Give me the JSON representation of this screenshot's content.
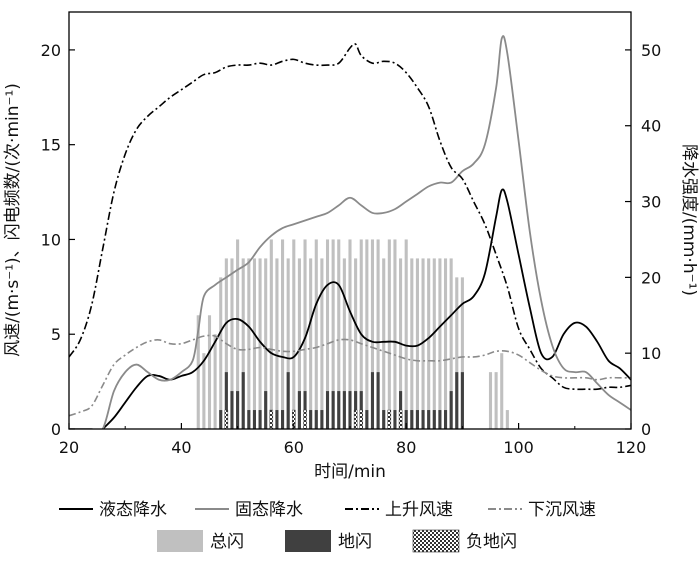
{
  "chart_data": {
    "type": "line",
    "xlabel": "时间/min",
    "ylabel_left": "风速/(m·s⁻¹)、闪电频数/(次·min⁻¹)",
    "ylabel_right": "降水强度/(mm·h⁻¹)",
    "xlim": [
      20,
      120
    ],
    "ylim_left": [
      0,
      22
    ],
    "ylim_right": [
      0,
      55
    ],
    "xticks": [
      20,
      40,
      60,
      80,
      100,
      120
    ],
    "yticks_left": [
      0,
      5,
      10,
      15,
      20
    ],
    "yticks_right": [
      0,
      10,
      20,
      30,
      40,
      50
    ],
    "grid": false,
    "legend_position": "bottom",
    "series": [
      {
        "name": "液态降水",
        "axis": "right",
        "color": "#000000",
        "style": "solid",
        "x": [
          26,
          28,
          30,
          32,
          34,
          36,
          38,
          40,
          42,
          44,
          46,
          48,
          50,
          52,
          54,
          56,
          58,
          60,
          62,
          64,
          66,
          68,
          70,
          72,
          74,
          76,
          78,
          80,
          82,
          84,
          86,
          88,
          90,
          92,
          94,
          96,
          97,
          98,
          100,
          102,
          104,
          106,
          108,
          110,
          112,
          114,
          116,
          118,
          120
        ],
        "values": [
          0,
          1.5,
          3.5,
          5.5,
          7,
          7,
          6.5,
          7,
          7.5,
          9,
          11.5,
          14,
          14.5,
          13.5,
          11.5,
          10,
          9.5,
          9.5,
          12,
          16.5,
          19,
          19,
          15.5,
          12.5,
          11.5,
          11.5,
          11.5,
          11,
          11,
          12,
          13.5,
          15,
          16.5,
          17.5,
          20.5,
          28,
          31.5,
          30,
          23,
          16,
          10,
          9.5,
          12.5,
          14,
          13.5,
          11.5,
          9,
          8,
          6.5
        ]
      },
      {
        "name": "固态降水",
        "axis": "right",
        "color": "#8a8a8a",
        "style": "solid",
        "x": [
          20,
          22,
          24,
          26,
          28,
          30,
          32,
          34,
          36,
          38,
          40,
          42,
          43,
          44,
          46,
          48,
          50,
          52,
          54,
          56,
          58,
          60,
          62,
          64,
          66,
          68,
          70,
          72,
          74,
          76,
          78,
          80,
          82,
          84,
          86,
          88,
          90,
          92,
          94,
          96,
          97,
          98,
          100,
          102,
          104,
          106,
          108,
          110,
          112,
          114,
          116,
          118,
          120
        ],
        "values": [
          0,
          0,
          0,
          0,
          5,
          7.5,
          8.5,
          7.5,
          6.5,
          6.5,
          7.5,
          9,
          13,
          17.5,
          19,
          20,
          21,
          22,
          24,
          25.5,
          26.5,
          27,
          27.5,
          28,
          28.5,
          29.5,
          30.5,
          29.5,
          28.5,
          28.5,
          29,
          30,
          31,
          32,
          32.5,
          32.5,
          34,
          35,
          37.5,
          45,
          51.5,
          49.5,
          38,
          26,
          17,
          11,
          8,
          7.5,
          7.5,
          6,
          4.5,
          3.5,
          2.5
        ]
      },
      {
        "name": "上升风速",
        "axis": "left",
        "color": "#000000",
        "style": "dashdot",
        "x": [
          20,
          22,
          24,
          26,
          28,
          30,
          32,
          34,
          36,
          38,
          40,
          42,
          44,
          46,
          48,
          50,
          52,
          54,
          56,
          58,
          60,
          62,
          64,
          66,
          68,
          70,
          71,
          72,
          74,
          76,
          78,
          80,
          82,
          84,
          86,
          88,
          90,
          92,
          94,
          96,
          98,
          100,
          102,
          104,
          106,
          108,
          110,
          112,
          114,
          116,
          118,
          120
        ],
        "values": [
          3.8,
          4.7,
          6.5,
          9.5,
          12.5,
          14.5,
          15.8,
          16.5,
          17,
          17.5,
          17.9,
          18.3,
          18.7,
          18.8,
          19.1,
          19.2,
          19.2,
          19.3,
          19.2,
          19.4,
          19.5,
          19.3,
          19.2,
          19.2,
          19.3,
          20.1,
          20.3,
          19.7,
          19.3,
          19.4,
          19.3,
          18.8,
          18,
          17,
          15.2,
          13.8,
          13.2,
          12,
          10.8,
          9.2,
          7.5,
          5.3,
          4.2,
          3.2,
          2.7,
          2.2,
          2.1,
          2.1,
          2.1,
          2.2,
          2.2,
          2.3
        ]
      },
      {
        "name": "下沉风速",
        "axis": "left",
        "color": "#8a8a8a",
        "style": "dashdot",
        "x": [
          20,
          22,
          24,
          26,
          28,
          30,
          32,
          34,
          36,
          38,
          40,
          42,
          44,
          46,
          48,
          50,
          52,
          54,
          56,
          58,
          60,
          62,
          64,
          66,
          68,
          70,
          72,
          74,
          76,
          78,
          80,
          82,
          84,
          86,
          88,
          90,
          92,
          94,
          96,
          98,
          100,
          102,
          104,
          106,
          108,
          110,
          112,
          114,
          116,
          118,
          120
        ],
        "values": [
          0.7,
          0.9,
          1.2,
          2.3,
          3.4,
          3.9,
          4.3,
          4.6,
          4.7,
          4.5,
          4.5,
          4.7,
          4.9,
          4.9,
          4.5,
          4.2,
          4.2,
          4.3,
          4.2,
          4.1,
          4.1,
          4.2,
          4.3,
          4.5,
          4.7,
          4.7,
          4.5,
          4.3,
          4.1,
          3.9,
          3.7,
          3.6,
          3.6,
          3.6,
          3.7,
          3.8,
          3.8,
          3.9,
          4.1,
          4.1,
          3.9,
          3.5,
          3.1,
          2.8,
          2.7,
          2.7,
          2.7,
          2.6,
          2.7,
          2.7,
          2.7
        ]
      }
    ],
    "bars": [
      {
        "name": "总闪",
        "axis": "left",
        "color": "#c0c0c0",
        "x": [
          43,
          44,
          45,
          46,
          47,
          48,
          49,
          50,
          51,
          52,
          53,
          54,
          55,
          56,
          57,
          58,
          59,
          60,
          61,
          62,
          63,
          64,
          65,
          66,
          67,
          68,
          69,
          70,
          71,
          72,
          73,
          74,
          75,
          76,
          77,
          78,
          79,
          80,
          81,
          82,
          83,
          84,
          85,
          86,
          87,
          88,
          89,
          90,
          95,
          96,
          97,
          98
        ],
        "values": [
          6,
          4,
          6,
          5,
          8,
          9,
          9,
          10,
          9,
          9,
          9,
          9,
          9,
          10,
          9,
          10,
          9,
          10,
          9,
          10,
          9,
          10,
          9,
          10,
          10,
          10,
          9,
          10,
          9,
          10,
          10,
          10,
          10,
          9,
          10,
          10,
          9,
          10,
          9,
          9,
          9,
          9,
          9,
          9,
          9,
          9,
          8,
          8,
          3,
          3,
          4,
          1
        ]
      },
      {
        "name": "地闪",
        "axis": "left",
        "color": "#404040",
        "x": [
          47,
          48,
          49,
          50,
          51,
          52,
          53,
          54,
          55,
          56,
          57,
          58,
          59,
          60,
          61,
          62,
          63,
          64,
          65,
          66,
          67,
          68,
          69,
          70,
          71,
          72,
          73,
          74,
          75,
          76,
          77,
          78,
          79,
          80,
          81,
          82,
          83,
          84,
          85,
          86,
          87,
          88,
          89,
          90
        ],
        "values": [
          1,
          3,
          2,
          2,
          3,
          1,
          1,
          1,
          2,
          1,
          1,
          1,
          3,
          1,
          2,
          2,
          1,
          1,
          1,
          2,
          2,
          2,
          2,
          2,
          2,
          2,
          1,
          3,
          3,
          1,
          1,
          1,
          2,
          1,
          1,
          1,
          1,
          1,
          1,
          1,
          1,
          2,
          3,
          3
        ]
      },
      {
        "name": "负地闪",
        "axis": "left",
        "color": "#ffffff",
        "x": [
          48,
          56,
          60,
          62,
          71,
          72,
          77,
          79
        ],
        "values": [
          1,
          1,
          1,
          1,
          1,
          1,
          1,
          1
        ]
      }
    ]
  }
}
